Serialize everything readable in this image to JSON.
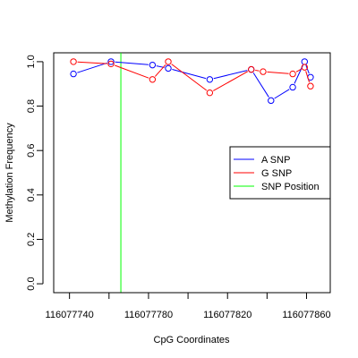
{
  "chart_data": {
    "type": "line",
    "xlabel": "CpG Coordinates",
    "ylabel": "Methylation Frequency",
    "xlim": [
      116077732,
      116077872
    ],
    "ylim": [
      -0.04,
      1.04
    ],
    "x_ticks": [
      116077740,
      116077760,
      116077780,
      116077800,
      116077820,
      116077840,
      116077860
    ],
    "x_tick_labels": [
      "116077740",
      "",
      "116077780",
      "",
      "116077820",
      "",
      "116077860"
    ],
    "y_ticks": [
      0.0,
      0.2,
      0.4,
      0.6,
      0.8,
      1.0
    ],
    "y_tick_labels": [
      "0.0",
      "0.2",
      "0.4",
      "0.6",
      "0.8",
      "1.0"
    ],
    "grid": false,
    "legend_position": "right",
    "series": [
      {
        "name": "A SNP",
        "color": "#0000ff",
        "x": [
          116077742,
          116077761,
          116077782,
          116077790,
          116077811,
          116077832,
          116077842,
          116077853,
          116077859,
          116077862
        ],
        "y": [
          0.945,
          1.0,
          0.985,
          0.97,
          0.92,
          0.965,
          0.825,
          0.885,
          1.0,
          0.93
        ]
      },
      {
        "name": "G SNP",
        "color": "#ff0000",
        "x": [
          116077742,
          116077761,
          116077782,
          116077790,
          116077811,
          116077832,
          116077838,
          116077853,
          116077859,
          116077862
        ],
        "y": [
          1.0,
          0.99,
          0.92,
          1.0,
          0.86,
          0.965,
          0.955,
          0.945,
          0.975,
          0.89
        ]
      }
    ],
    "snp_position": {
      "name": "SNP Position",
      "color": "#00ff00",
      "x": 116077766
    }
  }
}
